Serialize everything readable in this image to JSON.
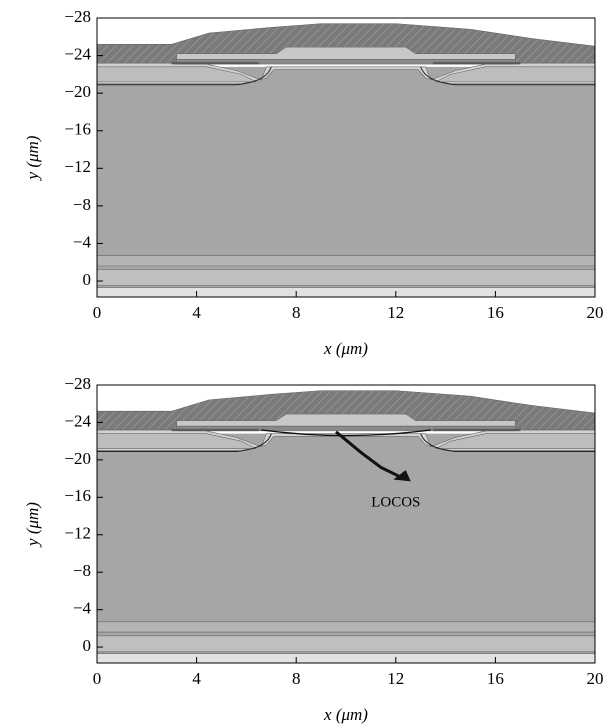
{
  "chart_data": [
    {
      "type": "cross-section",
      "xlabel": "x (μm)",
      "ylabel": "y (μm)",
      "xlim": [
        0,
        20
      ],
      "xticks": [
        0,
        4,
        8,
        12,
        16,
        20
      ],
      "ylim": [
        -28,
        1.7
      ],
      "yticks": [
        {
          "value": -28,
          "label": "−28"
        },
        {
          "value": -24,
          "label": "−24"
        },
        {
          "value": -20,
          "label": "−20"
        },
        {
          "value": -16,
          "label": "−16"
        },
        {
          "value": -12,
          "label": "−12"
        },
        {
          "value": -8,
          "label": "−8"
        },
        {
          "value": -4,
          "label": "−4"
        },
        0
      ]
    },
    {
      "type": "cross-section",
      "xlabel": "x (μm)",
      "ylabel": "y (μm)",
      "xlim": [
        0,
        20
      ],
      "xticks": [
        0,
        4,
        8,
        12,
        16,
        20
      ],
      "ylim": [
        -28,
        1.7
      ],
      "yticks": [
        {
          "value": -28,
          "label": "−28"
        },
        {
          "value": -24,
          "label": "−24"
        },
        {
          "value": -20,
          "label": "−20"
        },
        {
          "value": -16,
          "label": "−16"
        },
        {
          "value": -12,
          "label": "−12"
        },
        {
          "value": -8,
          "label": "−8"
        },
        {
          "value": -4,
          "label": "−4"
        },
        0
      ],
      "annotation": "LOCOS"
    }
  ]
}
